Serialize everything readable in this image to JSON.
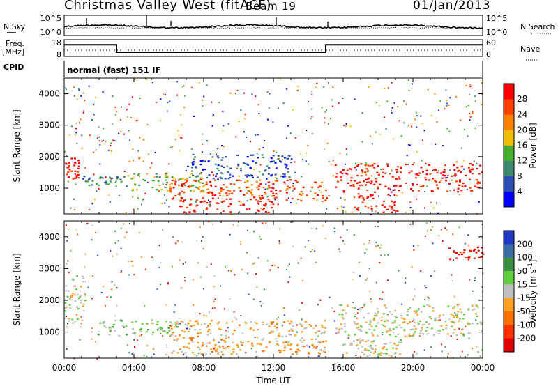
{
  "header": {
    "title": "Christmas Valley West (fitACF)",
    "beam": "Beam 19",
    "date": "01/Jan/2013"
  },
  "status_panel": {
    "left_labels": {
      "nsky": "N.Sky",
      "freq": "Freq.",
      "mhz": "[MHz]",
      "cpid": "CPID"
    },
    "right_labels": {
      "nsearch": "N.Search",
      "nave": "Nave"
    },
    "noise_ticks": [
      "10^5",
      "10^0"
    ],
    "freq_ticks": [
      "18",
      "8"
    ],
    "nave_ticks": [
      "60",
      "0"
    ],
    "cpid_text": "normal (fast) 151 IF"
  },
  "chart_data": [
    {
      "type": "line",
      "name": "frequency",
      "x": [
        0,
        3.0,
        3.0,
        15.0,
        15.0,
        24
      ],
      "y": [
        15,
        15,
        10.5,
        10.5,
        15,
        15
      ],
      "ylim": [
        8,
        18
      ],
      "xlim": [
        0,
        24
      ]
    },
    {
      "type": "heatmap",
      "ylabel": "Slant Range [km]",
      "yticks": [
        "1000",
        "2000",
        "3000",
        "4000"
      ],
      "ylim": [
        180,
        4500
      ],
      "xlim": [
        0,
        24
      ],
      "colorbar": {
        "label": "Power [dB]",
        "ticks": [
          "4",
          "8",
          "12",
          "16",
          "20",
          "24",
          "28"
        ],
        "colors": [
          "#0000ff",
          "#2e4fb8",
          "#3e8a6e",
          "#45b030",
          "#f0c000",
          "#ff8000",
          "#ff4000",
          "#ff0000"
        ]
      },
      "bands": [
        {
          "x": [
            0,
            0.8
          ],
          "y": [
            1300,
            2000
          ],
          "level": 7
        },
        {
          "x": [
            1.0,
            3.5
          ],
          "y": [
            1100,
            1400
          ],
          "level": 2
        },
        {
          "x": [
            3.5,
            8.0
          ],
          "y": [
            900,
            1500
          ],
          "level": 3
        },
        {
          "x": [
            6.0,
            15.0
          ],
          "y": [
            600,
            1300
          ],
          "level": 6
        },
        {
          "x": [
            6.5,
            12.0
          ],
          "y": [
            250,
            700
          ],
          "level": 7
        },
        {
          "x": [
            7.0,
            13.0
          ],
          "y": [
            1300,
            2100
          ],
          "level": 1
        },
        {
          "x": [
            15.5,
            24.0
          ],
          "y": [
            900,
            1800
          ],
          "level": 7
        },
        {
          "x": [
            16.5,
            19.0
          ],
          "y": [
            250,
            900
          ],
          "level": 7
        }
      ]
    },
    {
      "type": "heatmap",
      "ylabel": "Slant Range [km]",
      "xlabel": "Time UT",
      "xticks": [
        "00:00",
        "04:00",
        "08:00",
        "12:00",
        "16:00",
        "20:00",
        "00:00"
      ],
      "yticks": [
        "1000",
        "2000",
        "3000",
        "4000"
      ],
      "ylim": [
        180,
        4500
      ],
      "xlim": [
        0,
        24
      ],
      "colorbar": {
        "label": "Velocity [m s^-1]",
        "ticks": [
          "200",
          "100",
          "50",
          "15",
          "-15",
          "-50",
          "-100",
          "-200"
        ],
        "colors": [
          "#2038c8",
          "#3a6ea8",
          "#3a9040",
          "#60d040",
          "#c0c0c0",
          "#ffa020",
          "#ff7000",
          "#ff3000",
          "#e00000"
        ]
      },
      "bands": [
        {
          "x": [
            0,
            1.2
          ],
          "y": [
            1300,
            2800
          ],
          "level": 4
        },
        {
          "x": [
            1.5,
            6.5
          ],
          "y": [
            900,
            1400
          ],
          "level": 3
        },
        {
          "x": [
            6.0,
            15.0
          ],
          "y": [
            300,
            1400
          ],
          "level": 5
        },
        {
          "x": [
            15.5,
            24.0
          ],
          "y": [
            900,
            1900
          ],
          "level": 4
        },
        {
          "x": [
            16.0,
            19.5
          ],
          "y": [
            200,
            900
          ],
          "level": 4
        },
        {
          "x": [
            22.0,
            24.0
          ],
          "y": [
            3300,
            3700
          ],
          "level": 8
        }
      ]
    }
  ]
}
